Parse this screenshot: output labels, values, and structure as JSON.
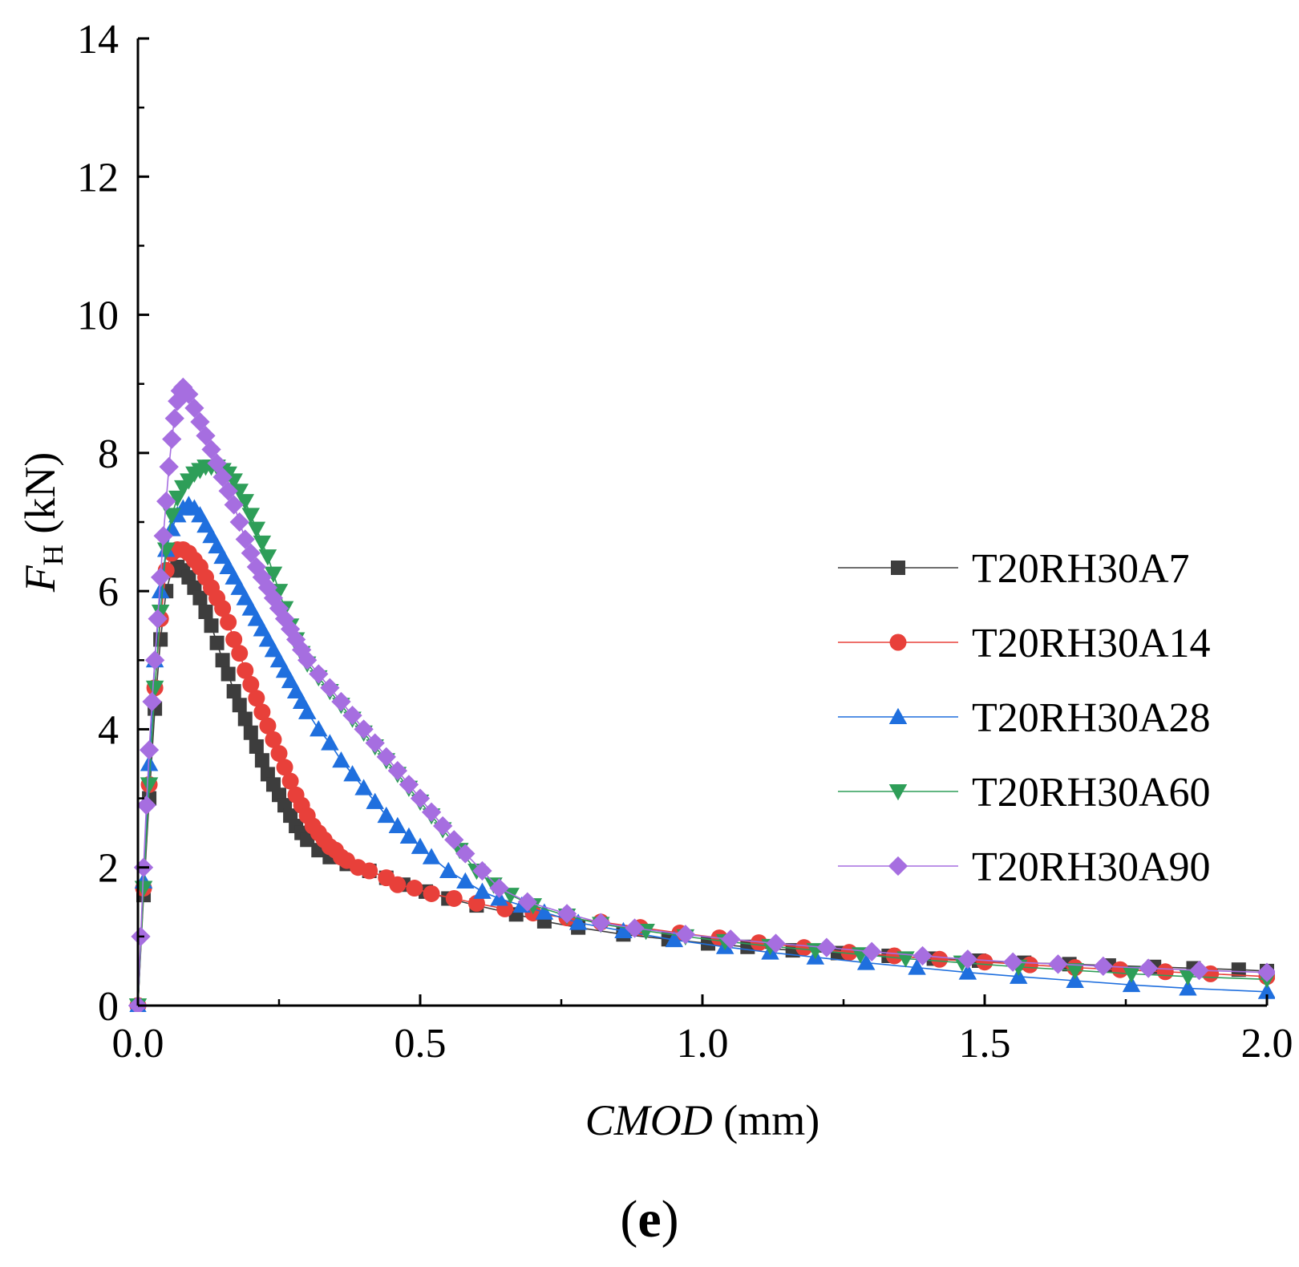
{
  "panel_label_open": "(",
  "panel_label_letter": "e",
  "panel_label_close": ")",
  "chart_data": {
    "type": "line",
    "title": "",
    "xlabel_italic": "CMOD",
    "xlabel_unit": " (mm)",
    "ylabel_italic": "F",
    "ylabel_sub": "H",
    "ylabel_unit": " (kN)",
    "xlim": [
      0,
      2.0
    ],
    "ylim": [
      0,
      14
    ],
    "xticks": [
      0.0,
      0.5,
      1.0,
      1.5,
      2.0
    ],
    "xtick_labels": [
      "0.0",
      "0.5",
      "1.0",
      "1.5",
      "2.0"
    ],
    "yticks": [
      0,
      2,
      4,
      6,
      8,
      10,
      12,
      14
    ],
    "ytick_labels": [
      "0",
      "2",
      "4",
      "6",
      "8",
      "10",
      "12",
      "14"
    ],
    "grid": false,
    "legend_position": "right-middle",
    "series": [
      {
        "name": "T20RH30A7",
        "color": "#3d3d3d",
        "marker": "square",
        "x": [
          0,
          0.01,
          0.02,
          0.03,
          0.04,
          0.05,
          0.06,
          0.07,
          0.08,
          0.09,
          0.1,
          0.11,
          0.12,
          0.13,
          0.14,
          0.15,
          0.16,
          0.17,
          0.18,
          0.19,
          0.2,
          0.21,
          0.22,
          0.23,
          0.24,
          0.25,
          0.26,
          0.27,
          0.28,
          0.29,
          0.3,
          0.32,
          0.34,
          0.37,
          0.41,
          0.44,
          0.47,
          0.51,
          0.55,
          0.6,
          0.67,
          0.72,
          0.78,
          0.86,
          0.94,
          1.01,
          1.08,
          1.16,
          1.24,
          1.33,
          1.41,
          1.49,
          1.57,
          1.65,
          1.72,
          1.8,
          1.87,
          1.95,
          2.0
        ],
        "y": [
          0,
          1.6,
          3.0,
          4.3,
          5.3,
          6.0,
          6.3,
          6.35,
          6.3,
          6.2,
          6.05,
          5.9,
          5.7,
          5.5,
          5.25,
          5.0,
          4.8,
          4.55,
          4.35,
          4.15,
          3.95,
          3.75,
          3.55,
          3.35,
          3.2,
          3.05,
          2.9,
          2.75,
          2.6,
          2.5,
          2.4,
          2.25,
          2.15,
          2.05,
          1.95,
          1.85,
          1.75,
          1.65,
          1.55,
          1.45,
          1.32,
          1.22,
          1.13,
          1.03,
          0.96,
          0.9,
          0.85,
          0.8,
          0.76,
          0.72,
          0.68,
          0.65,
          0.62,
          0.6,
          0.58,
          0.56,
          0.54,
          0.52,
          0.5
        ]
      },
      {
        "name": "T20RH30A14",
        "color": "#e8403a",
        "marker": "circle",
        "x": [
          0,
          0.01,
          0.02,
          0.03,
          0.04,
          0.05,
          0.06,
          0.07,
          0.08,
          0.09,
          0.1,
          0.11,
          0.12,
          0.13,
          0.14,
          0.15,
          0.16,
          0.17,
          0.18,
          0.19,
          0.2,
          0.21,
          0.22,
          0.23,
          0.24,
          0.25,
          0.26,
          0.27,
          0.28,
          0.29,
          0.3,
          0.31,
          0.32,
          0.33,
          0.34,
          0.35,
          0.36,
          0.37,
          0.39,
          0.41,
          0.44,
          0.46,
          0.49,
          0.52,
          0.56,
          0.6,
          0.65,
          0.7,
          0.76,
          0.82,
          0.89,
          0.96,
          1.03,
          1.1,
          1.18,
          1.26,
          1.34,
          1.42,
          1.5,
          1.58,
          1.66,
          1.74,
          1.82,
          1.9,
          2.0
        ],
        "y": [
          0,
          1.7,
          3.2,
          4.6,
          5.6,
          6.3,
          6.55,
          6.6,
          6.6,
          6.55,
          6.45,
          6.35,
          6.2,
          6.05,
          5.9,
          5.75,
          5.55,
          5.3,
          5.1,
          4.85,
          4.65,
          4.45,
          4.25,
          4.05,
          3.85,
          3.65,
          3.45,
          3.25,
          3.05,
          2.9,
          2.75,
          2.6,
          2.5,
          2.4,
          2.3,
          2.25,
          2.15,
          2.1,
          2.0,
          1.95,
          1.85,
          1.75,
          1.7,
          1.62,
          1.55,
          1.48,
          1.4,
          1.34,
          1.27,
          1.21,
          1.13,
          1.05,
          0.98,
          0.91,
          0.84,
          0.77,
          0.72,
          0.67,
          0.63,
          0.59,
          0.55,
          0.52,
          0.49,
          0.46,
          0.42
        ]
      },
      {
        "name": "T20RH30A28",
        "color": "#1f6fde",
        "marker": "triangle-up",
        "x": [
          0,
          0.01,
          0.02,
          0.03,
          0.04,
          0.05,
          0.06,
          0.07,
          0.08,
          0.09,
          0.1,
          0.11,
          0.12,
          0.13,
          0.14,
          0.15,
          0.16,
          0.17,
          0.18,
          0.19,
          0.2,
          0.21,
          0.22,
          0.23,
          0.24,
          0.25,
          0.26,
          0.27,
          0.28,
          0.29,
          0.3,
          0.32,
          0.34,
          0.36,
          0.38,
          0.4,
          0.42,
          0.44,
          0.46,
          0.48,
          0.5,
          0.52,
          0.55,
          0.58,
          0.61,
          0.64,
          0.68,
          0.72,
          0.78,
          0.86,
          0.95,
          1.04,
          1.12,
          1.2,
          1.29,
          1.38,
          1.47,
          1.56,
          1.66,
          1.76,
          1.86,
          2.0
        ],
        "y": [
          0,
          1.8,
          3.5,
          5.0,
          6.0,
          6.6,
          6.9,
          7.1,
          7.2,
          7.25,
          7.2,
          7.1,
          6.95,
          6.8,
          6.65,
          6.5,
          6.35,
          6.2,
          6.05,
          5.9,
          5.75,
          5.6,
          5.45,
          5.3,
          5.15,
          5.0,
          4.85,
          4.7,
          4.55,
          4.4,
          4.25,
          4.0,
          3.8,
          3.55,
          3.35,
          3.15,
          2.95,
          2.75,
          2.6,
          2.45,
          2.3,
          2.15,
          1.95,
          1.8,
          1.65,
          1.55,
          1.45,
          1.35,
          1.2,
          1.08,
          0.95,
          0.85,
          0.77,
          0.7,
          0.62,
          0.55,
          0.48,
          0.42,
          0.36,
          0.3,
          0.25,
          0.2
        ]
      },
      {
        "name": "T20RH30A60",
        "color": "#2e9e58",
        "marker": "triangle-down",
        "x": [
          0,
          0.01,
          0.02,
          0.03,
          0.04,
          0.05,
          0.06,
          0.07,
          0.08,
          0.09,
          0.1,
          0.11,
          0.12,
          0.13,
          0.14,
          0.15,
          0.16,
          0.17,
          0.18,
          0.19,
          0.2,
          0.21,
          0.22,
          0.23,
          0.24,
          0.25,
          0.26,
          0.27,
          0.28,
          0.29,
          0.3,
          0.32,
          0.34,
          0.36,
          0.38,
          0.4,
          0.42,
          0.44,
          0.46,
          0.48,
          0.5,
          0.52,
          0.54,
          0.57,
          0.6,
          0.63,
          0.66,
          0.7,
          0.76,
          0.82,
          0.9,
          0.97,
          1.04,
          1.12,
          1.2,
          1.28,
          1.36,
          1.46,
          1.56,
          1.66,
          1.76,
          1.86,
          2.0
        ],
        "y": [
          0,
          1.7,
          3.2,
          4.6,
          5.7,
          6.6,
          7.1,
          7.35,
          7.5,
          7.6,
          7.7,
          7.75,
          7.8,
          7.8,
          7.8,
          7.75,
          7.7,
          7.6,
          7.45,
          7.3,
          7.1,
          6.9,
          6.7,
          6.5,
          6.25,
          6.0,
          5.75,
          5.5,
          5.3,
          5.1,
          4.95,
          4.75,
          4.55,
          4.35,
          4.15,
          3.95,
          3.75,
          3.55,
          3.35,
          3.15,
          2.95,
          2.75,
          2.55,
          2.25,
          1.95,
          1.75,
          1.6,
          1.45,
          1.3,
          1.18,
          1.08,
          1.0,
          0.93,
          0.86,
          0.8,
          0.74,
          0.68,
          0.62,
          0.56,
          0.51,
          0.46,
          0.42,
          0.38
        ]
      },
      {
        "name": "T20RH30A90",
        "color": "#a66ee0",
        "marker": "diamond",
        "x": [
          0,
          0.005,
          0.01,
          0.015,
          0.02,
          0.025,
          0.03,
          0.035,
          0.04,
          0.045,
          0.05,
          0.055,
          0.06,
          0.065,
          0.07,
          0.075,
          0.08,
          0.09,
          0.1,
          0.11,
          0.12,
          0.13,
          0.14,
          0.15,
          0.16,
          0.17,
          0.18,
          0.19,
          0.2,
          0.21,
          0.22,
          0.23,
          0.24,
          0.25,
          0.26,
          0.27,
          0.28,
          0.29,
          0.3,
          0.32,
          0.34,
          0.36,
          0.38,
          0.4,
          0.42,
          0.44,
          0.46,
          0.48,
          0.5,
          0.52,
          0.54,
          0.56,
          0.58,
          0.61,
          0.64,
          0.69,
          0.76,
          0.82,
          0.88,
          0.97,
          1.05,
          1.13,
          1.22,
          1.3,
          1.39,
          1.47,
          1.55,
          1.63,
          1.71,
          1.79,
          1.88,
          2.0
        ],
        "y": [
          0,
          1.0,
          2.0,
          2.9,
          3.7,
          4.4,
          5.0,
          5.6,
          6.2,
          6.8,
          7.3,
          7.8,
          8.2,
          8.5,
          8.75,
          8.9,
          8.95,
          8.85,
          8.65,
          8.45,
          8.25,
          8.05,
          7.85,
          7.65,
          7.45,
          7.25,
          7.0,
          6.75,
          6.55,
          6.35,
          6.2,
          6.05,
          5.9,
          5.75,
          5.6,
          5.45,
          5.3,
          5.15,
          5.0,
          4.8,
          4.6,
          4.4,
          4.2,
          4.0,
          3.8,
          3.6,
          3.4,
          3.2,
          3.0,
          2.8,
          2.6,
          2.4,
          2.2,
          1.95,
          1.7,
          1.5,
          1.33,
          1.2,
          1.12,
          1.03,
          0.96,
          0.9,
          0.84,
          0.78,
          0.72,
          0.67,
          0.63,
          0.6,
          0.57,
          0.54,
          0.51,
          0.48
        ]
      }
    ]
  }
}
